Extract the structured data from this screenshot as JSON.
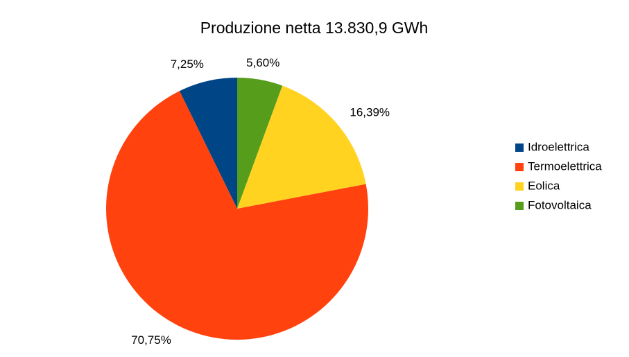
{
  "chart_data": {
    "type": "pie",
    "title": "Produzione netta 13.830,9 GWh",
    "categories": [
      "Idroelettrica",
      "Termoelettrica",
      "Eolica",
      "Fotovoltaica"
    ],
    "values": [
      7.25,
      70.75,
      16.39,
      5.6
    ],
    "value_labels": [
      "7,25%",
      "70,75%",
      "16,39%",
      "5,60%"
    ],
    "colors": [
      "#004586",
      "#ff420e",
      "#ffd320",
      "#579d1c"
    ],
    "legend": "right"
  }
}
